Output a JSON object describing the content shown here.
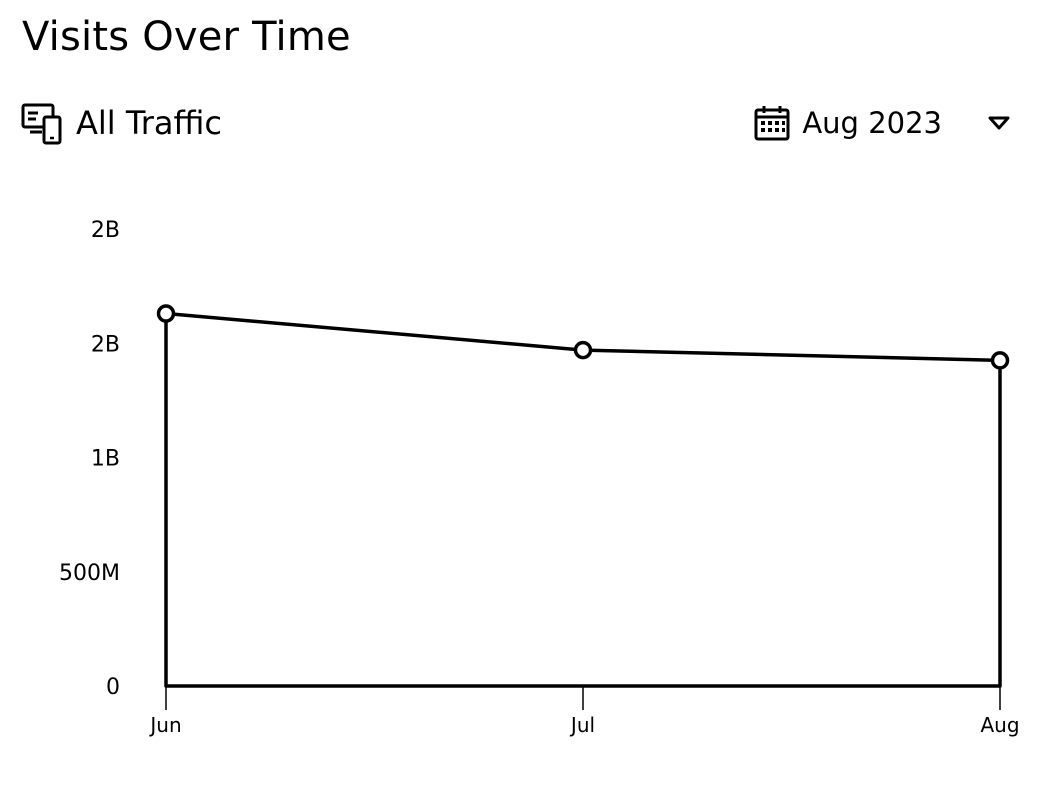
{
  "header": {
    "title": "Visits Over Time"
  },
  "toolbar": {
    "traffic_label": "All Traffic",
    "traffic_icon": "devices-icon",
    "date_label": "Aug 2023",
    "date_icon": "calendar-icon",
    "dropdown_icon": "caret-down-icon"
  },
  "chart_data": {
    "type": "area",
    "title": "",
    "xlabel": "",
    "ylabel": "",
    "categories": [
      "Jun",
      "Jul",
      "Aug"
    ],
    "series": [
      {
        "values": [
          1630000000,
          1470000000,
          1425000000
        ]
      }
    ],
    "ylim": [
      0,
      2000000000
    ],
    "yticks": [
      0,
      500000000,
      1000000000,
      1500000000,
      2000000000
    ],
    "ytick_labels": [
      "0",
      "500M",
      "1B",
      "2B",
      "2B"
    ],
    "grid": false,
    "colors": {
      "line": "#000000",
      "fill": "#ffffff",
      "marker_fill": "#ffffff"
    }
  }
}
